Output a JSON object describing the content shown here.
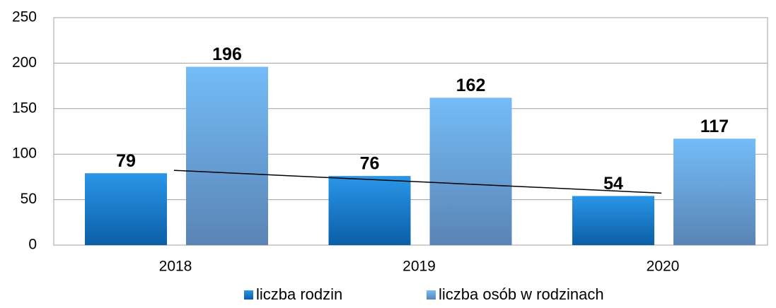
{
  "chart_data": {
    "type": "bar",
    "categories": [
      "2018",
      "2019",
      "2020"
    ],
    "series": [
      {
        "name": "liczba rodzin",
        "color": "#2a96e8",
        "values": [
          79,
          76,
          54
        ]
      },
      {
        "name": "liczba osób w rodzinach",
        "color": "#74bcf8",
        "values": [
          196,
          162,
          117
        ]
      }
    ],
    "ylim": [
      0,
      250
    ],
    "yticks": [
      0,
      50,
      100,
      150,
      200,
      250
    ],
    "grid": true,
    "trendline": {
      "series": 0,
      "type": "linear",
      "color": "#000000"
    },
    "legend": "bottom"
  }
}
